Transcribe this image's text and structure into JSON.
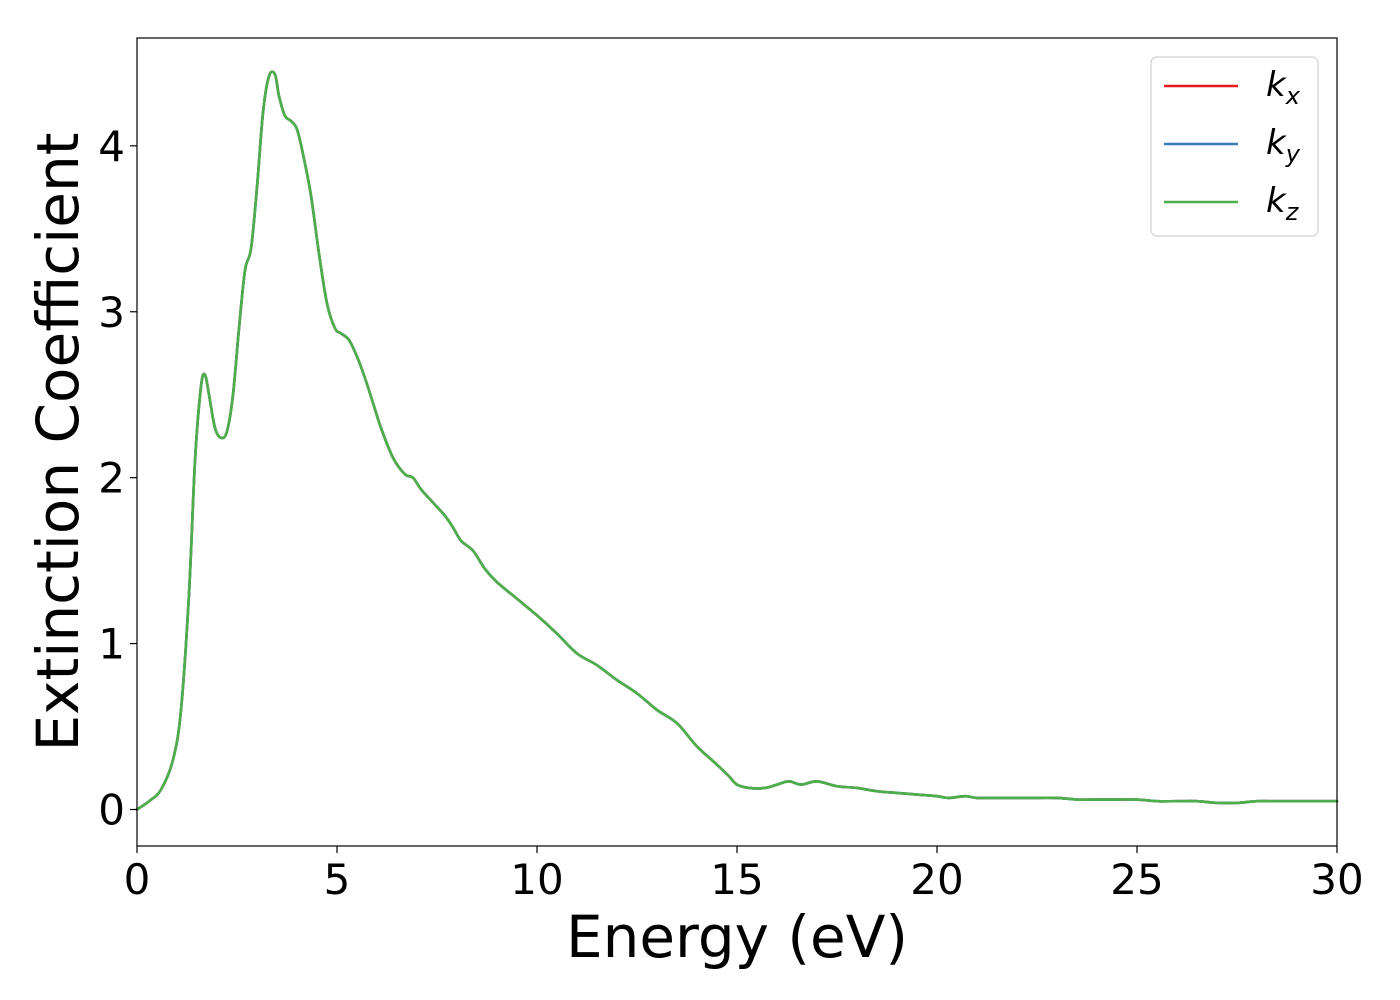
{
  "chart_data": {
    "type": "line",
    "title": "",
    "xlabel": "Energy (eV)",
    "ylabel": "Extinction Coefficient",
    "xlim": [
      0,
      30
    ],
    "ylim": [
      -0.22,
      4.65
    ],
    "xticks": [
      0,
      5,
      10,
      15,
      20,
      25,
      30
    ],
    "yticks": [
      0,
      1,
      2,
      3,
      4
    ],
    "grid": false,
    "legend_position": "top-right",
    "x": [
      0,
      0.3,
      0.6,
      0.9,
      1.1,
      1.3,
      1.45,
      1.6,
      1.7,
      1.8,
      1.95,
      2.1,
      2.25,
      2.4,
      2.55,
      2.7,
      2.85,
      3.0,
      3.15,
      3.3,
      3.45,
      3.55,
      3.7,
      3.85,
      4.0,
      4.15,
      4.35,
      4.55,
      4.75,
      4.95,
      5.1,
      5.3,
      5.5,
      5.7,
      5.9,
      6.1,
      6.4,
      6.7,
      6.9,
      7.1,
      7.4,
      7.7,
      7.9,
      8.1,
      8.4,
      8.7,
      9.0,
      9.5,
      10.0,
      10.5,
      11.0,
      11.5,
      12.0,
      12.5,
      13.0,
      13.5,
      14.0,
      14.5,
      14.8,
      15.0,
      15.3,
      15.7,
      16.0,
      16.3,
      16.6,
      17.0,
      17.5,
      18.0,
      18.5,
      19.0,
      19.5,
      20.0,
      20.3,
      20.7,
      21.0,
      21.5,
      22.0,
      22.5,
      23.0,
      23.5,
      24.0,
      24.5,
      25.0,
      25.5,
      26.0,
      26.5,
      27.0,
      27.5,
      28.0,
      28.5,
      29.0,
      29.5,
      30.0
    ],
    "series": [
      {
        "name": "k_x",
        "label_base": "k",
        "label_sub": "x",
        "color": "#e41a1c",
        "values": [
          0,
          0.05,
          0.12,
          0.3,
          0.6,
          1.3,
          2.1,
          2.55,
          2.62,
          2.5,
          2.3,
          2.24,
          2.28,
          2.5,
          2.9,
          3.25,
          3.38,
          3.75,
          4.2,
          4.42,
          4.43,
          4.3,
          4.18,
          4.15,
          4.1,
          3.95,
          3.7,
          3.35,
          3.05,
          2.9,
          2.87,
          2.83,
          2.73,
          2.6,
          2.45,
          2.3,
          2.12,
          2.02,
          2.0,
          1.93,
          1.85,
          1.77,
          1.7,
          1.62,
          1.56,
          1.45,
          1.37,
          1.27,
          1.17,
          1.06,
          0.94,
          0.87,
          0.78,
          0.7,
          0.6,
          0.52,
          0.38,
          0.27,
          0.2,
          0.15,
          0.13,
          0.13,
          0.15,
          0.17,
          0.15,
          0.17,
          0.14,
          0.13,
          0.11,
          0.1,
          0.09,
          0.08,
          0.07,
          0.08,
          0.07,
          0.07,
          0.07,
          0.07,
          0.07,
          0.06,
          0.06,
          0.06,
          0.06,
          0.05,
          0.05,
          0.05,
          0.04,
          0.04,
          0.05,
          0.05,
          0.05,
          0.05,
          0.05
        ]
      },
      {
        "name": "k_y",
        "label_base": "k",
        "label_sub": "y",
        "color": "#377eb8",
        "values": [
          0,
          0.05,
          0.12,
          0.3,
          0.6,
          1.3,
          2.1,
          2.55,
          2.62,
          2.5,
          2.3,
          2.24,
          2.28,
          2.5,
          2.9,
          3.25,
          3.38,
          3.75,
          4.2,
          4.42,
          4.43,
          4.3,
          4.18,
          4.15,
          4.1,
          3.95,
          3.7,
          3.35,
          3.05,
          2.9,
          2.87,
          2.83,
          2.73,
          2.6,
          2.45,
          2.3,
          2.12,
          2.02,
          2.0,
          1.93,
          1.85,
          1.77,
          1.7,
          1.62,
          1.56,
          1.45,
          1.37,
          1.27,
          1.17,
          1.06,
          0.94,
          0.87,
          0.78,
          0.7,
          0.6,
          0.52,
          0.38,
          0.27,
          0.2,
          0.15,
          0.13,
          0.13,
          0.15,
          0.17,
          0.15,
          0.17,
          0.14,
          0.13,
          0.11,
          0.1,
          0.09,
          0.08,
          0.07,
          0.08,
          0.07,
          0.07,
          0.07,
          0.07,
          0.07,
          0.06,
          0.06,
          0.06,
          0.06,
          0.05,
          0.05,
          0.05,
          0.04,
          0.04,
          0.05,
          0.05,
          0.05,
          0.05,
          0.05
        ]
      },
      {
        "name": "k_z",
        "label_base": "k",
        "label_sub": "z",
        "color": "#4daf4a",
        "values": [
          0,
          0.05,
          0.12,
          0.3,
          0.6,
          1.3,
          2.1,
          2.55,
          2.62,
          2.5,
          2.3,
          2.24,
          2.28,
          2.5,
          2.9,
          3.25,
          3.38,
          3.75,
          4.2,
          4.42,
          4.43,
          4.3,
          4.18,
          4.15,
          4.1,
          3.95,
          3.7,
          3.35,
          3.05,
          2.9,
          2.87,
          2.83,
          2.73,
          2.6,
          2.45,
          2.3,
          2.12,
          2.02,
          2.0,
          1.93,
          1.85,
          1.77,
          1.7,
          1.62,
          1.56,
          1.45,
          1.37,
          1.27,
          1.17,
          1.06,
          0.94,
          0.87,
          0.78,
          0.7,
          0.6,
          0.52,
          0.38,
          0.27,
          0.2,
          0.15,
          0.13,
          0.13,
          0.15,
          0.17,
          0.15,
          0.17,
          0.14,
          0.13,
          0.11,
          0.1,
          0.09,
          0.08,
          0.07,
          0.08,
          0.07,
          0.07,
          0.07,
          0.07,
          0.07,
          0.06,
          0.06,
          0.06,
          0.06,
          0.05,
          0.05,
          0.05,
          0.04,
          0.04,
          0.05,
          0.05,
          0.05,
          0.05,
          0.05
        ]
      }
    ]
  }
}
